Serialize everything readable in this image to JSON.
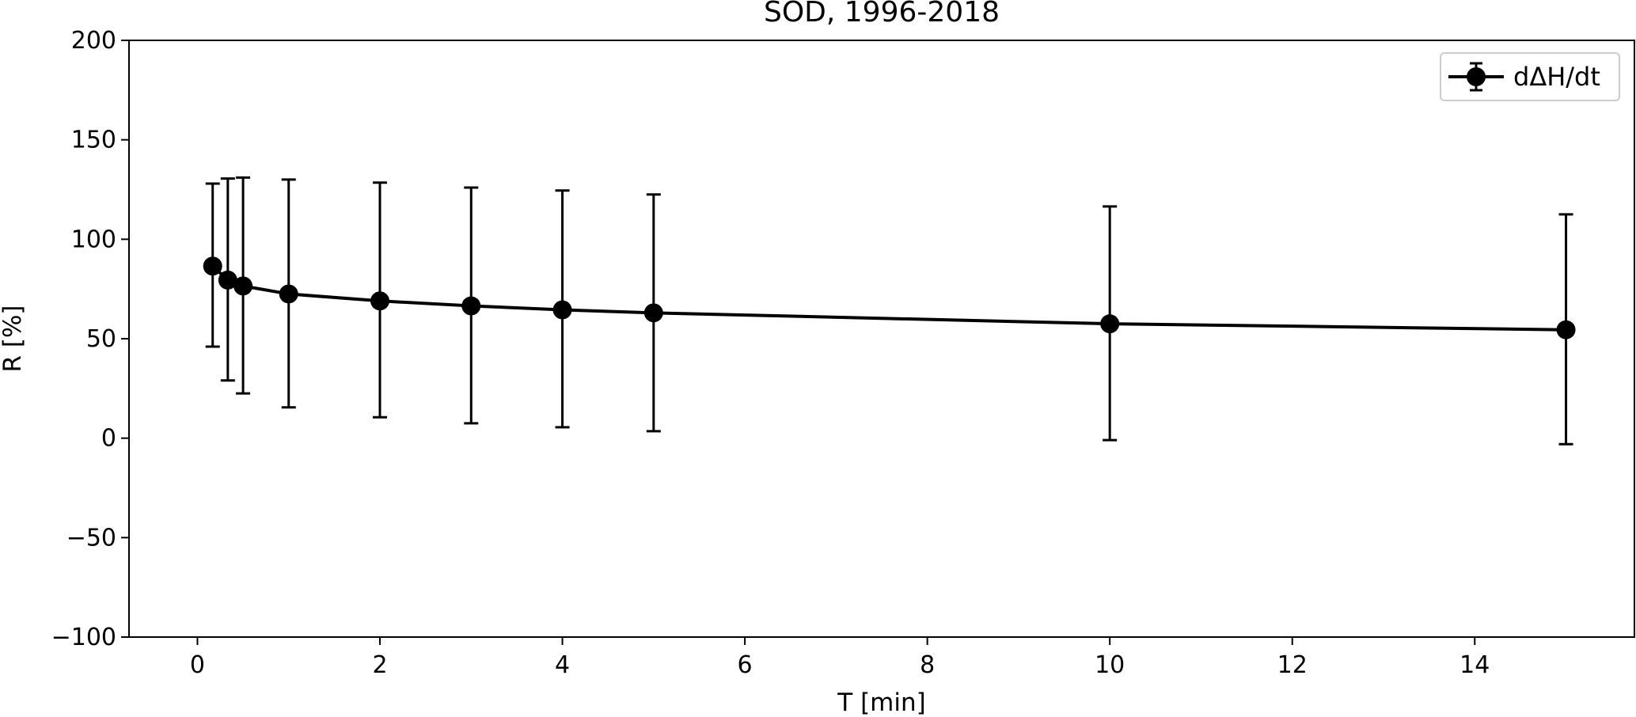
{
  "chart_data": {
    "type": "line",
    "title": "SOD, 1996-2018",
    "xlabel": "T [min]",
    "ylabel": "R [%]",
    "xlim": [
      -0.75,
      15.75
    ],
    "ylim": [
      -100,
      200
    ],
    "xticks": [
      0,
      2,
      4,
      6,
      8,
      10,
      12,
      14
    ],
    "yticks": [
      -100,
      -50,
      0,
      50,
      100,
      150,
      200
    ],
    "xtick_labels": [
      "0",
      "2",
      "4",
      "6",
      "8",
      "10",
      "12",
      "14"
    ],
    "ytick_labels": [
      "−100",
      "−50",
      "0",
      "50",
      "100",
      "150",
      "200"
    ],
    "grid": false,
    "legend_position": "top-right",
    "series": [
      {
        "name": "dΔH/dt",
        "color": "#000000",
        "x": [
          0.167,
          0.333,
          0.5,
          1,
          2,
          3,
          4,
          5,
          10,
          15
        ],
        "y": [
          86.5,
          79.5,
          76.5,
          72.5,
          69,
          66.5,
          64.5,
          63,
          57.5,
          54.5
        ],
        "err_low": [
          46,
          29,
          22.5,
          15.5,
          10.5,
          7.5,
          5.5,
          3.5,
          -1,
          -3
        ],
        "err_high": [
          128,
          130.5,
          131,
          130,
          128.5,
          126,
          124.5,
          122.5,
          116.5,
          112.5
        ]
      }
    ]
  }
}
